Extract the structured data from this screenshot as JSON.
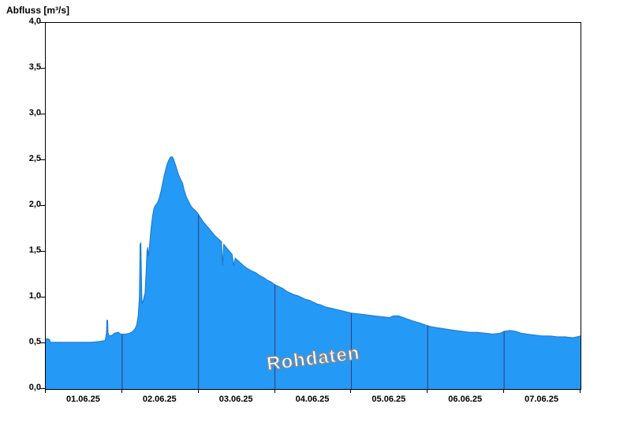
{
  "chart_data": {
    "type": "area",
    "title": "Abfluss [m³/s]",
    "watermark": "Rohdaten",
    "x_range_days": [
      0,
      7
    ],
    "y_range": [
      0,
      4
    ],
    "y_tick_step": 0.5,
    "y_tick_labels": [
      "0,0",
      "0,5",
      "1,0",
      "1,5",
      "2,0",
      "2,5",
      "3,0",
      "3,5",
      "4,0"
    ],
    "x_tick_labels": [
      "01.06.25",
      "02.06.25",
      "03.06.25",
      "04.06.25",
      "05.06.25",
      "06.06.25",
      "07.06.25"
    ],
    "x_gridlines_days": [
      1,
      2,
      3,
      4,
      5,
      6
    ],
    "legend_position": "none",
    "grid": "vertical-day-lines-only",
    "colors": {
      "fill": "#2499f5",
      "edge": "#1877cc",
      "gridline": "#3c3c6e",
      "frame": "#000000",
      "text": "#000000"
    },
    "series": [
      {
        "name": "Abfluss Rohdaten",
        "unit": "m³/s",
        "x_unit": "days since 01.06.25 00:00",
        "points": [
          [
            0.0,
            0.55
          ],
          [
            0.03,
            0.55
          ],
          [
            0.05,
            0.54
          ],
          [
            0.06,
            0.51
          ],
          [
            0.15,
            0.51
          ],
          [
            0.3,
            0.51
          ],
          [
            0.45,
            0.51
          ],
          [
            0.6,
            0.51
          ],
          [
            0.7,
            0.52
          ],
          [
            0.78,
            0.53
          ],
          [
            0.795,
            0.62
          ],
          [
            0.8,
            0.75
          ],
          [
            0.81,
            0.75
          ],
          [
            0.815,
            0.62
          ],
          [
            0.83,
            0.58
          ],
          [
            0.87,
            0.59
          ],
          [
            0.9,
            0.61
          ],
          [
            0.95,
            0.62
          ],
          [
            0.98,
            0.6
          ],
          [
            1.05,
            0.6
          ],
          [
            1.1,
            0.61
          ],
          [
            1.14,
            0.63
          ],
          [
            1.17,
            0.66
          ],
          [
            1.19,
            0.7
          ],
          [
            1.21,
            0.8
          ],
          [
            1.225,
            1.0
          ],
          [
            1.235,
            1.58
          ],
          [
            1.245,
            1.6
          ],
          [
            1.255,
            1.1
          ],
          [
            1.26,
            0.93
          ],
          [
            1.28,
            0.98
          ],
          [
            1.3,
            1.05
          ],
          [
            1.315,
            1.3
          ],
          [
            1.325,
            1.5
          ],
          [
            1.335,
            1.55
          ],
          [
            1.345,
            1.45
          ],
          [
            1.355,
            1.52
          ],
          [
            1.37,
            1.68
          ],
          [
            1.385,
            1.8
          ],
          [
            1.4,
            1.9
          ],
          [
            1.415,
            1.97
          ],
          [
            1.43,
            2.0
          ],
          [
            1.45,
            2.02
          ],
          [
            1.47,
            2.05
          ],
          [
            1.49,
            2.1
          ],
          [
            1.51,
            2.17
          ],
          [
            1.53,
            2.25
          ],
          [
            1.55,
            2.33
          ],
          [
            1.57,
            2.4
          ],
          [
            1.59,
            2.46
          ],
          [
            1.61,
            2.5
          ],
          [
            1.63,
            2.53
          ],
          [
            1.65,
            2.54
          ],
          [
            1.67,
            2.52
          ],
          [
            1.69,
            2.47
          ],
          [
            1.71,
            2.42
          ],
          [
            1.73,
            2.36
          ],
          [
            1.76,
            2.3
          ],
          [
            1.79,
            2.25
          ],
          [
            1.81,
            2.18
          ],
          [
            1.84,
            2.1
          ],
          [
            1.87,
            2.05
          ],
          [
            1.9,
            2.0
          ],
          [
            1.93,
            1.97
          ],
          [
            1.96,
            1.95
          ],
          [
            1.99,
            1.92
          ],
          [
            2.02,
            1.88
          ],
          [
            2.06,
            1.83
          ],
          [
            2.1,
            1.79
          ],
          [
            2.14,
            1.75
          ],
          [
            2.18,
            1.71
          ],
          [
            2.22,
            1.67
          ],
          [
            2.26,
            1.64
          ],
          [
            2.3,
            1.61
          ],
          [
            2.315,
            1.35
          ],
          [
            2.33,
            1.58
          ],
          [
            2.37,
            1.54
          ],
          [
            2.41,
            1.5
          ],
          [
            2.44,
            1.47
          ],
          [
            2.46,
            1.35
          ],
          [
            2.48,
            1.43
          ],
          [
            2.52,
            1.4
          ],
          [
            2.56,
            1.37
          ],
          [
            2.6,
            1.34
          ],
          [
            2.65,
            1.31
          ],
          [
            2.7,
            1.29
          ],
          [
            2.75,
            1.27
          ],
          [
            2.8,
            1.24
          ],
          [
            2.85,
            1.22
          ],
          [
            2.9,
            1.19
          ],
          [
            2.95,
            1.17
          ],
          [
            3.0,
            1.14
          ],
          [
            3.05,
            1.12
          ],
          [
            3.1,
            1.1
          ],
          [
            3.15,
            1.07
          ],
          [
            3.2,
            1.05
          ],
          [
            3.25,
            1.03
          ],
          [
            3.3,
            1.02
          ],
          [
            3.35,
            1.0
          ],
          [
            3.4,
            0.98
          ],
          [
            3.45,
            0.97
          ],
          [
            3.5,
            0.95
          ],
          [
            3.55,
            0.93
          ],
          [
            3.6,
            0.92
          ],
          [
            3.65,
            0.9
          ],
          [
            3.7,
            0.89
          ],
          [
            3.75,
            0.88
          ],
          [
            3.8,
            0.87
          ],
          [
            3.85,
            0.86
          ],
          [
            3.9,
            0.85
          ],
          [
            3.95,
            0.84
          ],
          [
            4.0,
            0.83
          ],
          [
            4.1,
            0.82
          ],
          [
            4.2,
            0.81
          ],
          [
            4.3,
            0.8
          ],
          [
            4.4,
            0.79
          ],
          [
            4.5,
            0.78
          ],
          [
            4.55,
            0.8
          ],
          [
            4.62,
            0.8
          ],
          [
            4.68,
            0.78
          ],
          [
            4.75,
            0.76
          ],
          [
            4.82,
            0.74
          ],
          [
            4.9,
            0.72
          ],
          [
            4.97,
            0.7
          ],
          [
            5.05,
            0.68
          ],
          [
            5.12,
            0.67
          ],
          [
            5.2,
            0.66
          ],
          [
            5.28,
            0.65
          ],
          [
            5.36,
            0.64
          ],
          [
            5.45,
            0.63
          ],
          [
            5.55,
            0.62
          ],
          [
            5.65,
            0.62
          ],
          [
            5.75,
            0.61
          ],
          [
            5.85,
            0.6
          ],
          [
            5.95,
            0.61
          ],
          [
            6.0,
            0.63
          ],
          [
            6.08,
            0.64
          ],
          [
            6.15,
            0.63
          ],
          [
            6.22,
            0.61
          ],
          [
            6.3,
            0.6
          ],
          [
            6.4,
            0.59
          ],
          [
            6.5,
            0.58
          ],
          [
            6.6,
            0.58
          ],
          [
            6.7,
            0.57
          ],
          [
            6.8,
            0.57
          ],
          [
            6.9,
            0.56
          ],
          [
            6.95,
            0.57
          ],
          [
            7.0,
            0.58
          ]
        ]
      }
    ]
  }
}
